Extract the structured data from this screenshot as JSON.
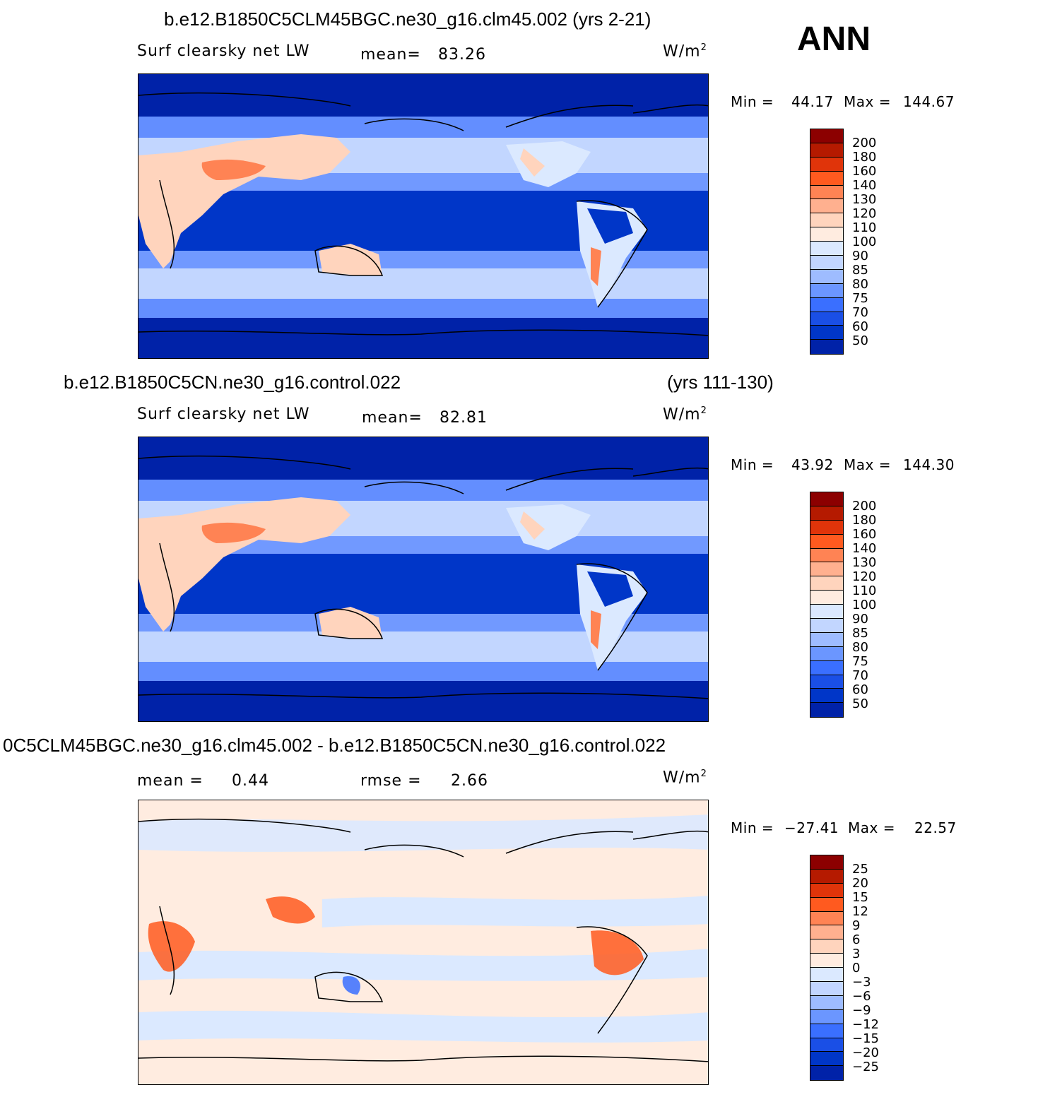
{
  "season": "ANN",
  "colors": {
    "scale": [
      "#00007d",
      "#0022a8",
      "#0036c8",
      "#1a4fe6",
      "#3a6fff",
      "#6b96ff",
      "#9ebcff",
      "#c2d6ff",
      "#dbe9ff",
      "#ffece0",
      "#ffd4bd",
      "#ffb08f",
      "#ff8354",
      "#ff5a1f",
      "#e0340a",
      "#b51a00",
      "#8c0000"
    ],
    "ocean_deep": "#0022a8",
    "ocean_band": "#0036c8",
    "ocean_mid": "#3a6fff",
    "ocean_light": "#c2d6ff",
    "pale": "#dbe9ff",
    "land_warm": "#ffd4bd",
    "land_hot": "#ff8354",
    "diff_pos": "#ffece0",
    "diff_neg": "#dbe9ff",
    "diff_hot": "#ff5a1f",
    "diff_cold": "#3a6fff"
  },
  "panels": [
    {
      "title": "b.e12.B1850C5CLM45BGC.ne30_g16.clm45.002 (yrs 2-21)",
      "years": "",
      "variable": "Surf clearsky net LW",
      "stat1_label": "mean=",
      "stat1_value": "83.26",
      "stat2_label": "",
      "stat2_value": "",
      "units": "W/m",
      "units_sup": "2",
      "min_label": "Min =",
      "min_value": "44.17",
      "max_label": "Max =",
      "max_value": "144.67",
      "colorbar_levels": [
        "200",
        "180",
        "160",
        "140",
        "130",
        "120",
        "110",
        "100",
        "90",
        "85",
        "80",
        "75",
        "70",
        "60",
        "50"
      ]
    },
    {
      "title": "b.e12.B1850C5CN.ne30_g16.control.022",
      "years": "(yrs 111-130)",
      "variable": "Surf clearsky net LW",
      "stat1_label": "mean=",
      "stat1_value": "82.81",
      "stat2_label": "",
      "stat2_value": "",
      "units": "W/m",
      "units_sup": "2",
      "min_label": "Min =",
      "min_value": "43.92",
      "max_label": "Max =",
      "max_value": "144.30",
      "colorbar_levels": [
        "200",
        "180",
        "160",
        "140",
        "130",
        "120",
        "110",
        "100",
        "90",
        "85",
        "80",
        "75",
        "70",
        "60",
        "50"
      ]
    },
    {
      "title": "0C5CLM45BGC.ne30_g16.clm45.002 - b.e12.B1850C5CN.ne30_g16.control.022",
      "years": "",
      "variable": "",
      "stat1_label": "mean =",
      "stat1_value": "0.44",
      "stat2_label": "rmse =",
      "stat2_value": "2.66",
      "units": "W/m",
      "units_sup": "2",
      "min_label": "Min =",
      "min_value": "−27.41",
      "max_label": "Max =",
      "max_value": "22.57",
      "colorbar_levels": [
        "25",
        "20",
        "15",
        "12",
        "9",
        "6",
        "3",
        "0",
        "−3",
        "−6",
        "−9",
        "−12",
        "−15",
        "−20",
        "−25"
      ]
    }
  ]
}
